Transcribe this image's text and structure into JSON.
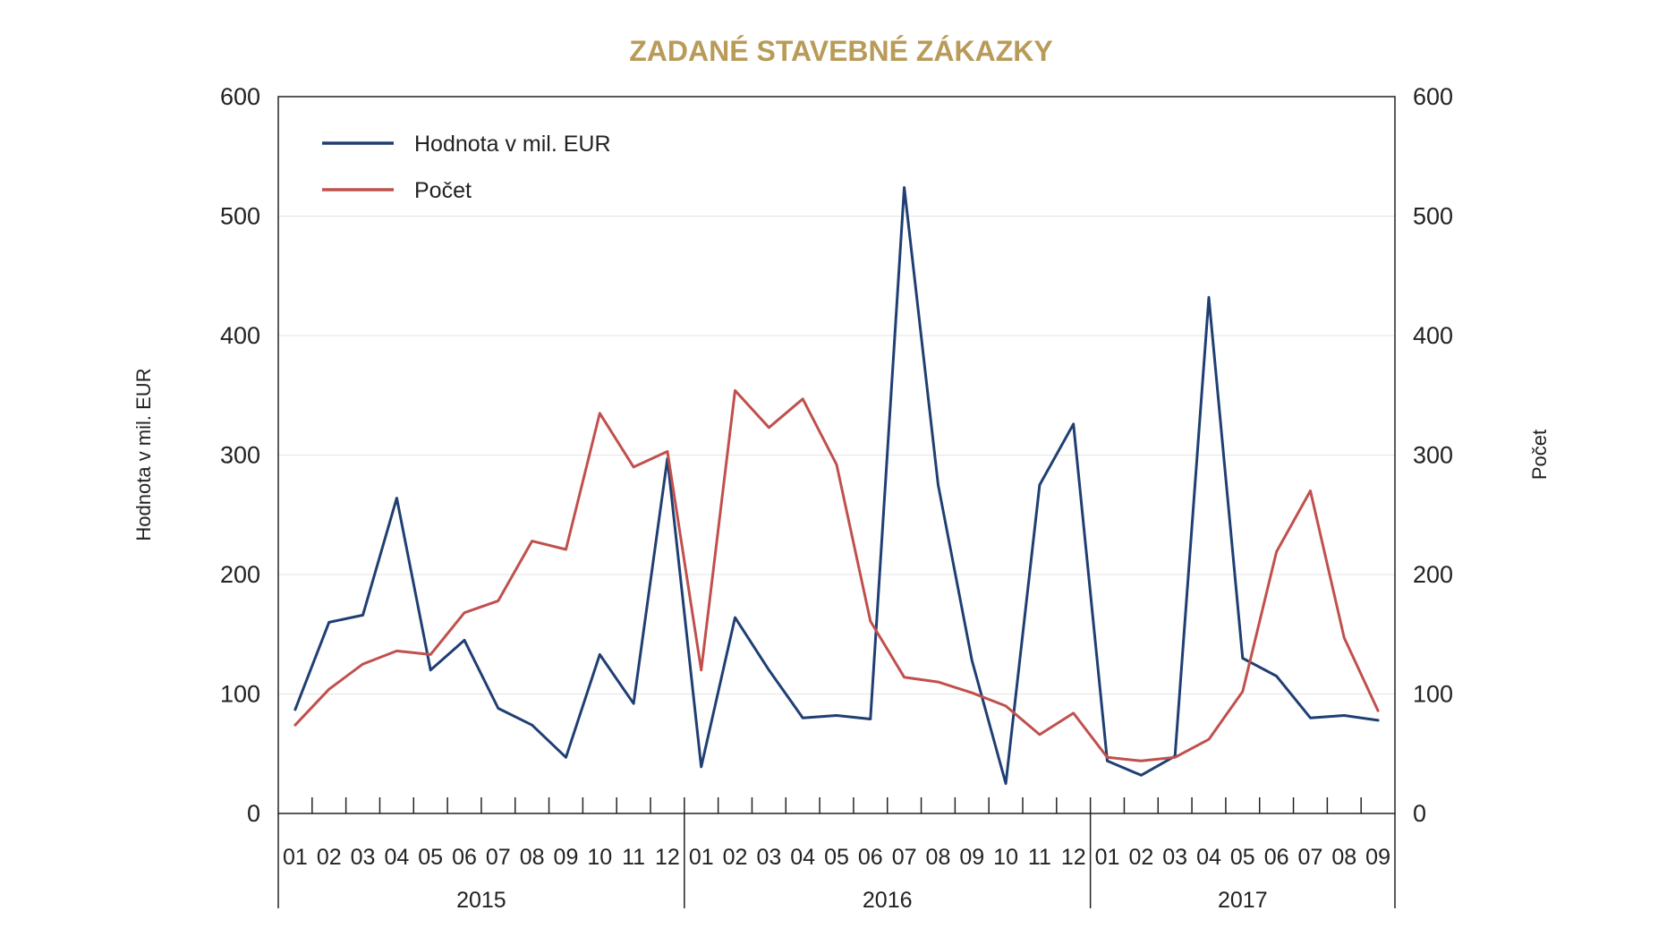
{
  "chart_data": {
    "type": "line",
    "title": "ZADANÉ STAVEBNÉ ZÁKAZKY",
    "ylabel_left": "Hodnota v mil. EUR",
    "ylabel_right": "Počet",
    "ylim": [
      0,
      600
    ],
    "yticks": [
      "0",
      "100",
      "200",
      "300",
      "400",
      "500",
      "600"
    ],
    "grid": "horizontal",
    "legend_position": "top-left",
    "years": [
      {
        "label": "2015",
        "months": 12
      },
      {
        "label": "2016",
        "months": 12
      },
      {
        "label": "2017",
        "months": 9
      }
    ],
    "x": [
      "01",
      "02",
      "03",
      "04",
      "05",
      "06",
      "07",
      "08",
      "09",
      "10",
      "11",
      "12",
      "01",
      "02",
      "03",
      "04",
      "05",
      "06",
      "07",
      "08",
      "09",
      "10",
      "11",
      "12",
      "01",
      "02",
      "03",
      "04",
      "05",
      "06",
      "07",
      "08",
      "09"
    ],
    "series": [
      {
        "name": "Hodnota v mil. EUR",
        "axis": "left",
        "color": "#1f3f73",
        "values": [
          87,
          160,
          166,
          264,
          120,
          145,
          88,
          74,
          47,
          133,
          92,
          297,
          39,
          164,
          120,
          80,
          82,
          79,
          524,
          275,
          128,
          25,
          275,
          326,
          44,
          32,
          48,
          432,
          130,
          115,
          80,
          82,
          78
        ]
      },
      {
        "name": "Počet",
        "axis": "right",
        "color": "#c0504d",
        "values": [
          74,
          104,
          125,
          136,
          133,
          168,
          178,
          228,
          221,
          335,
          290,
          303,
          120,
          354,
          323,
          347,
          292,
          161,
          114,
          110,
          101,
          90,
          66,
          84,
          47,
          44,
          47,
          62,
          102,
          219,
          270,
          147,
          86
        ]
      }
    ]
  }
}
